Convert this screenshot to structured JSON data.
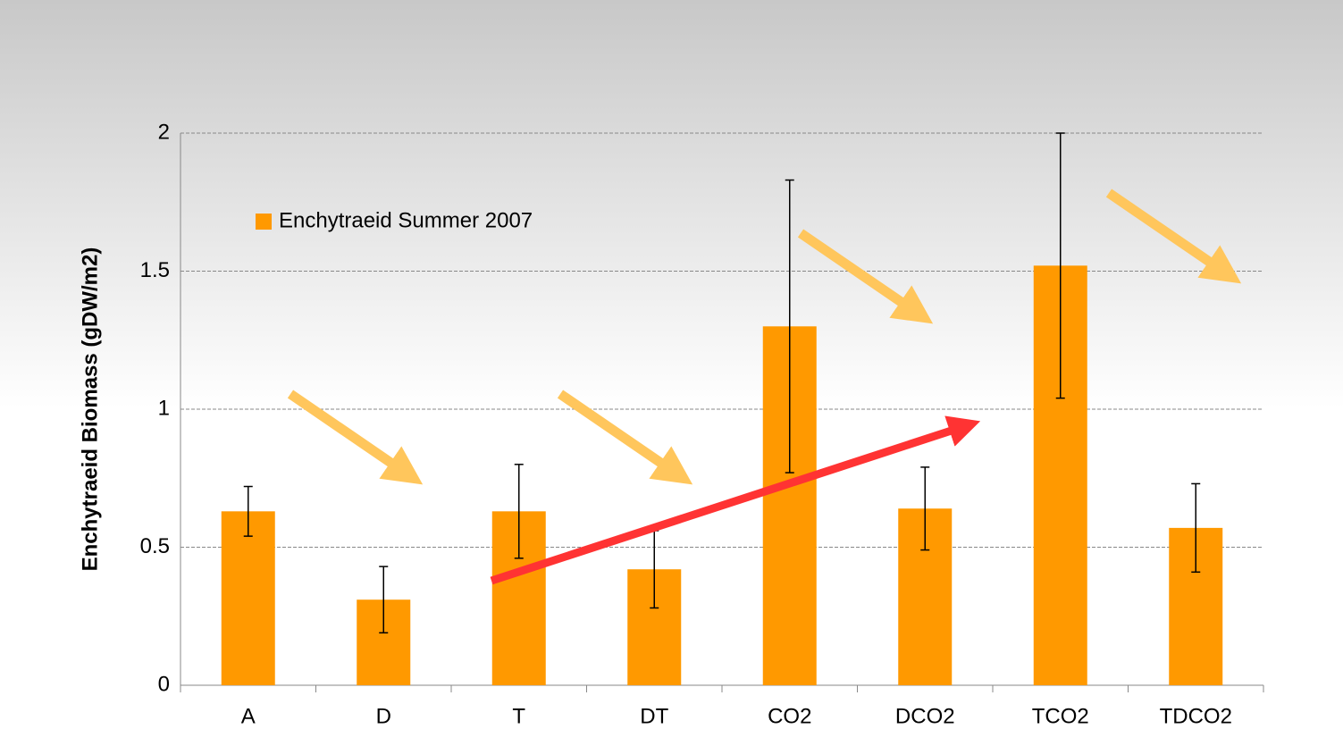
{
  "chart_data": {
    "type": "bar",
    "y_axis_label": "Enchytraeid Biomass (gDW/m2)",
    "categories": [
      "A",
      "D",
      "T",
      "DT",
      "CO2",
      "DCO2",
      "TCO2",
      "TDCO2"
    ],
    "series": [
      {
        "name": "Enchytraeid Summer 2007",
        "color": "#ff9900",
        "values": [
          0.63,
          0.31,
          0.63,
          0.42,
          1.3,
          0.64,
          1.52,
          0.57
        ],
        "errors": [
          0.09,
          0.12,
          0.17,
          0.14,
          0.53,
          0.15,
          0.48,
          0.16
        ]
      }
    ],
    "ylim": [
      0,
      2
    ],
    "yticks": [
      0,
      0.5,
      1,
      1.5,
      2
    ],
    "grid": true,
    "legend": "upper left"
  }
}
